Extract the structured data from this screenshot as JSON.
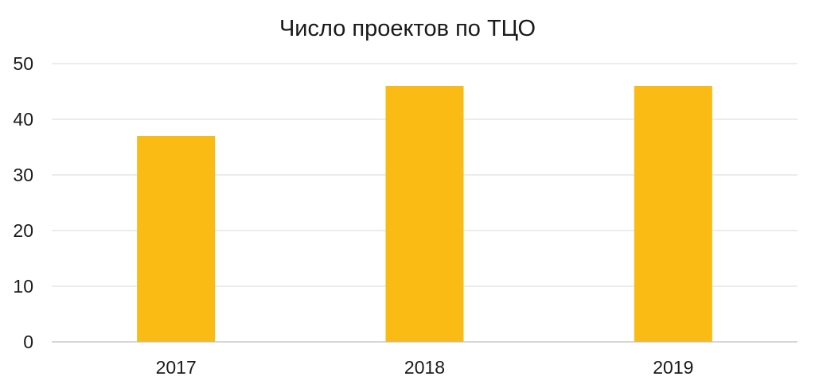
{
  "chart_data": {
    "type": "bar",
    "title": "Число проектов по ТЦО",
    "categories": [
      "2017",
      "2018",
      "2019"
    ],
    "values": [
      37,
      46,
      46
    ],
    "ylim": [
      0,
      50
    ],
    "yticks": [
      0,
      10,
      20,
      30,
      40,
      50
    ],
    "xlabel": "",
    "ylabel": "",
    "grid": true,
    "legend": "none",
    "bar_color": "#FABB15"
  }
}
